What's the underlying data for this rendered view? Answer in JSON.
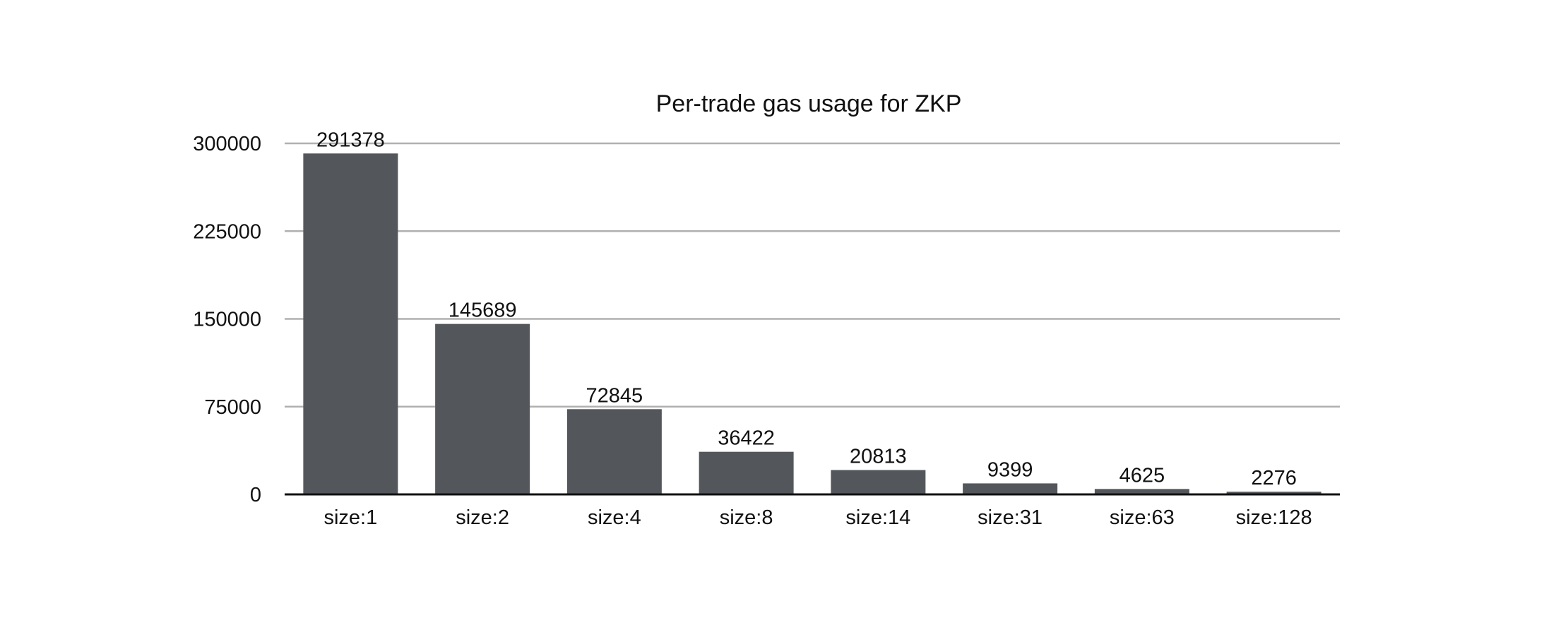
{
  "chart_data": {
    "type": "bar",
    "title": "Per-trade gas usage for ZKP",
    "xlabel": "",
    "ylabel": "",
    "categories": [
      "size:1",
      "size:2",
      "size:4",
      "size:8",
      "size:14",
      "size:31",
      "size:63",
      "size:128"
    ],
    "values": [
      291378,
      145689,
      72845,
      36422,
      20813,
      9399,
      4625,
      2276
    ],
    "ylim": [
      0,
      300000
    ],
    "yticks": [
      0,
      75000,
      150000,
      225000,
      300000
    ],
    "ytick_labels": [
      "0",
      "75000",
      "150000",
      "225000",
      "300000"
    ],
    "grid": true,
    "legend": false,
    "data_labels": true,
    "bar_color": "#53575c",
    "grid_color": "#b0b0b0",
    "axis_color": "#111111"
  }
}
